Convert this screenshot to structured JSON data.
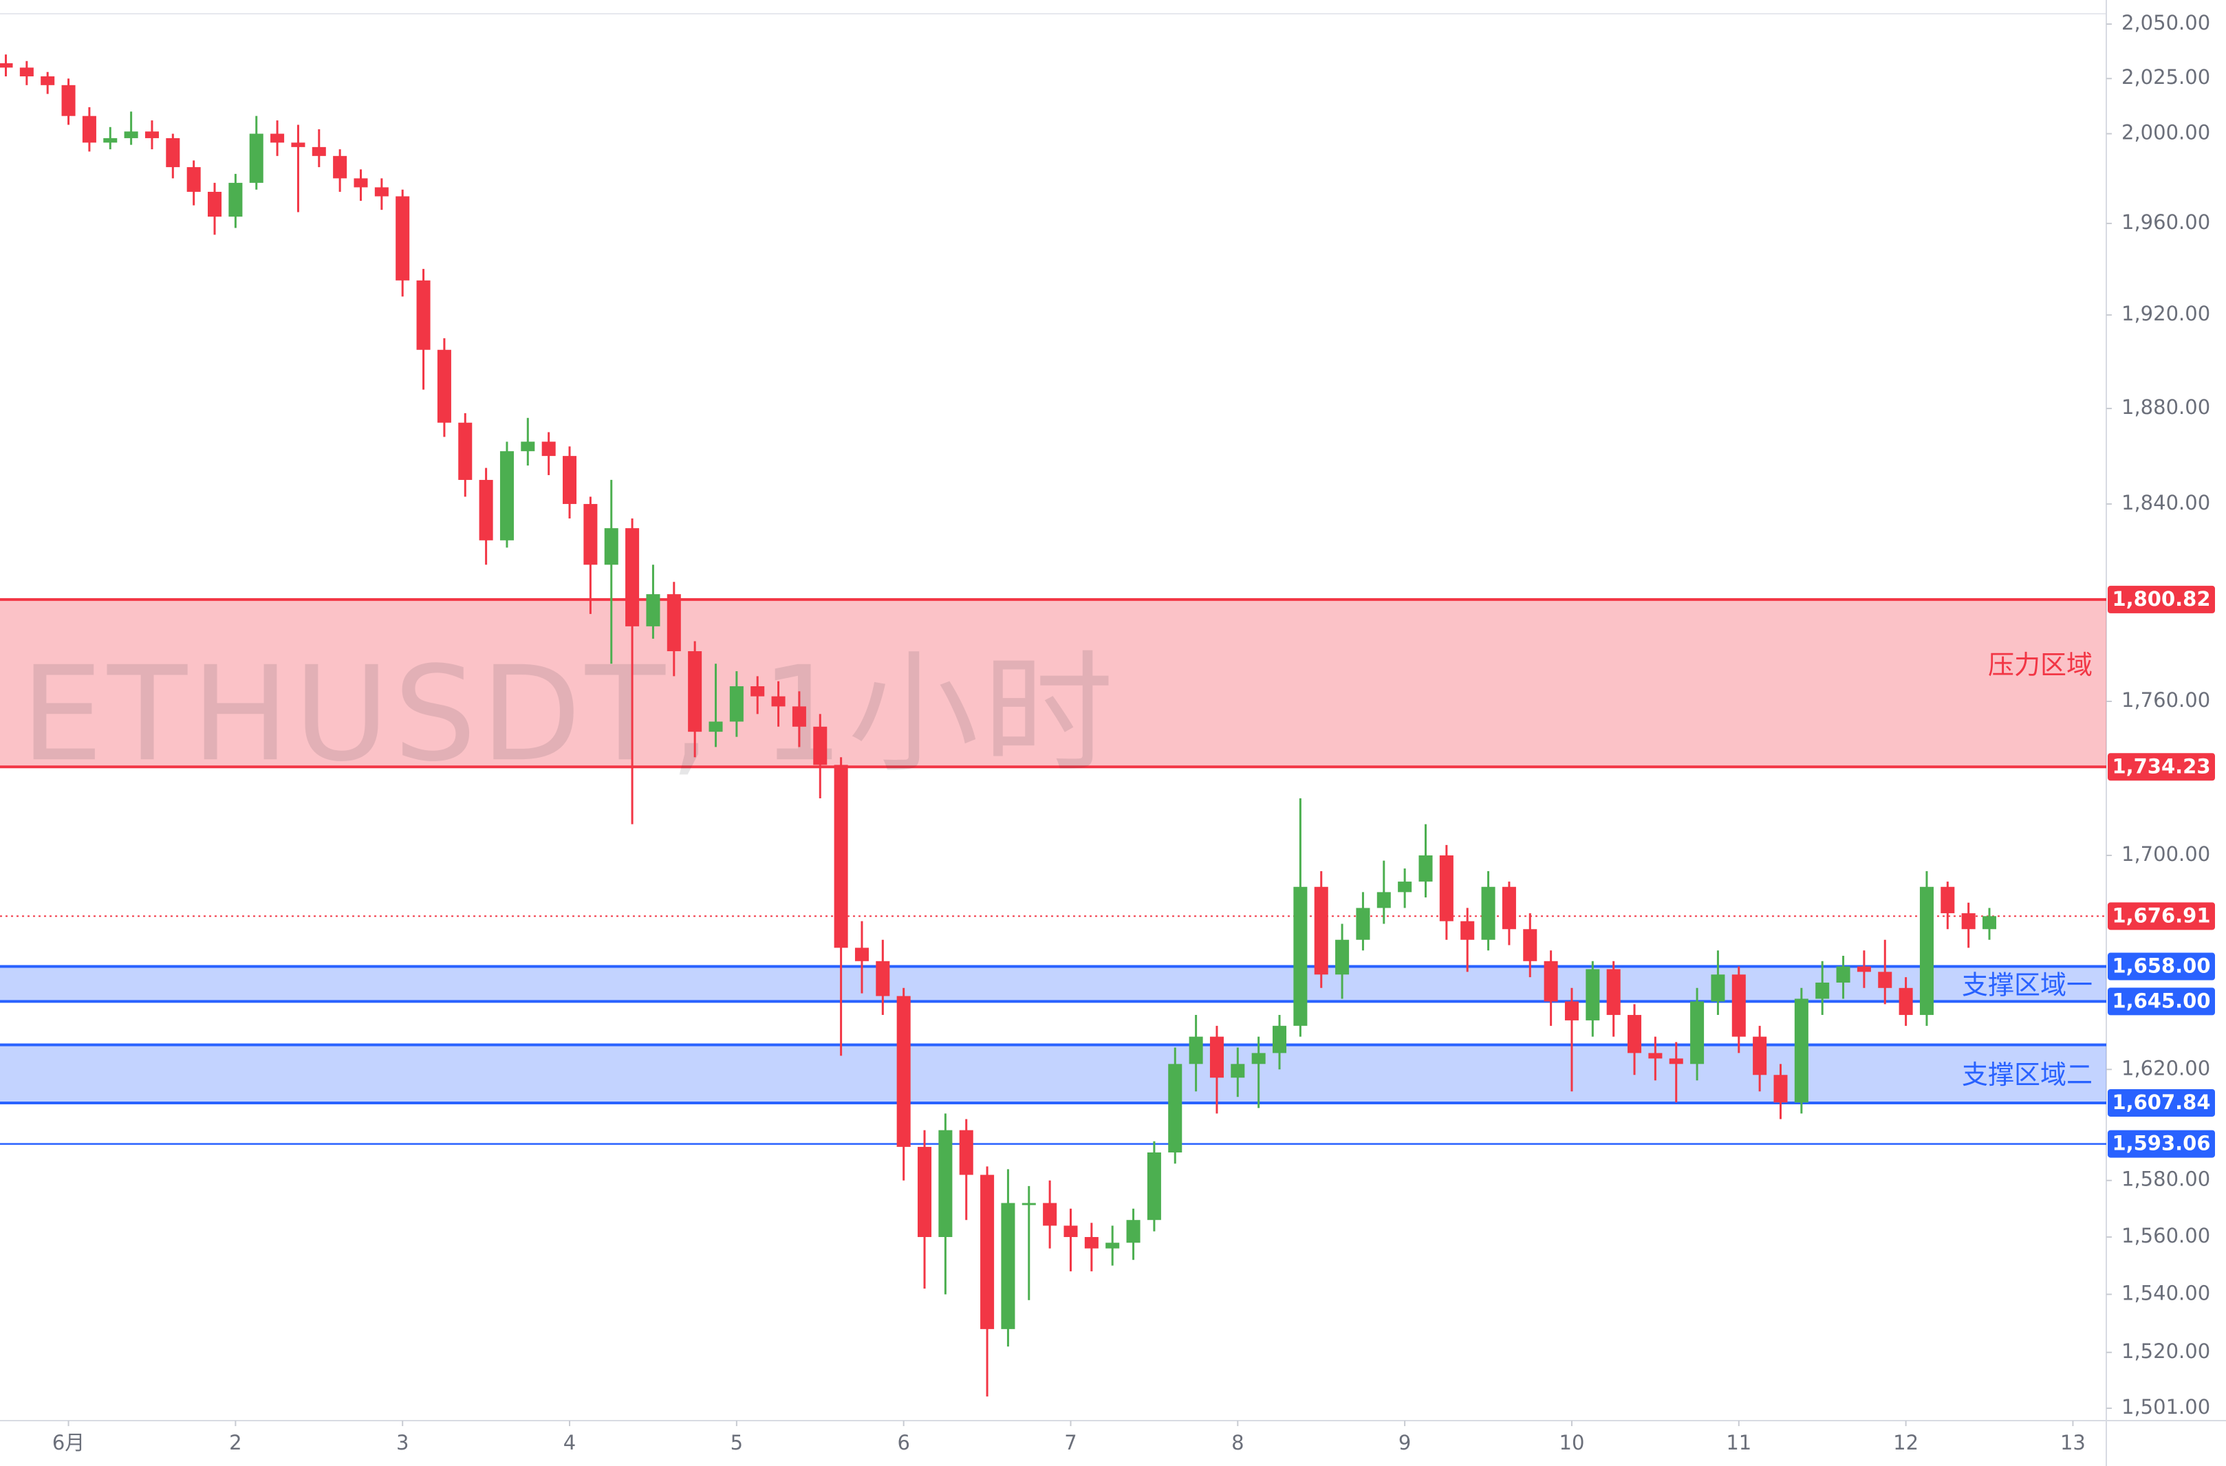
{
  "chart_data": {
    "type": "candlestick",
    "watermark": "ETHUSDT, 1小时",
    "log_scale": true,
    "up_color": "#4caf50",
    "down_color": "#f23645",
    "xlim": [
      0.59,
      13.2
    ],
    "ylim": [
      1501,
      2050
    ],
    "xticks": [
      {
        "value": 1,
        "label": "6月"
      },
      2,
      3,
      4,
      5,
      6,
      7,
      8,
      9,
      10,
      11,
      12,
      13
    ],
    "yticks": [
      {
        "value": 2050,
        "label": "2,050.00"
      },
      {
        "value": 2025,
        "label": "2,025.00"
      },
      {
        "value": 2000,
        "label": "2,000.00"
      },
      {
        "value": 1960,
        "label": "1,960.00"
      },
      {
        "value": 1920,
        "label": "1,920.00"
      },
      {
        "value": 1880,
        "label": "1,880.00"
      },
      {
        "value": 1840,
        "label": "1,840.00"
      },
      {
        "value": 1760,
        "label": "1,760.00"
      },
      {
        "value": 1700,
        "label": "1,700.00"
      },
      {
        "value": 1620,
        "label": "1,620.00"
      },
      {
        "value": 1580,
        "label": "1,580.00"
      },
      {
        "value": 1560,
        "label": "1,560.00"
      },
      {
        "value": 1540,
        "label": "1,540.00"
      },
      {
        "value": 1520,
        "label": "1,520.00"
      },
      {
        "value": 1501,
        "label": "1,501.00"
      }
    ],
    "x": [
      0.625,
      0.75,
      0.875,
      1,
      1.125,
      1.25,
      1.375,
      1.5,
      1.625,
      1.75,
      1.875,
      2,
      2.125,
      2.25,
      2.375,
      2.5,
      2.625,
      2.75,
      2.875,
      3,
      3.125,
      3.25,
      3.375,
      3.5,
      3.625,
      3.75,
      3.875,
      4,
      4.125,
      4.25,
      4.375,
      4.5,
      4.625,
      4.75,
      4.875,
      5,
      5.125,
      5.25,
      5.375,
      5.5,
      5.625,
      5.75,
      5.875,
      6,
      6.125,
      6.25,
      6.375,
      6.5,
      6.625,
      6.75,
      6.875,
      7,
      7.125,
      7.25,
      7.375,
      7.5,
      7.625,
      7.75,
      7.875,
      8,
      8.125,
      8.25,
      8.375,
      8.5,
      8.625,
      8.75,
      8.875,
      9,
      9.125,
      9.25,
      9.375,
      9.5,
      9.625,
      9.75,
      9.875,
      10,
      10.125,
      10.25,
      10.375,
      10.5,
      10.625,
      10.75,
      10.875,
      11,
      11.125,
      11.25,
      11.375,
      11.5,
      11.625,
      11.75,
      11.875,
      12,
      12.125,
      12.25,
      12.375,
      12.5
    ],
    "open": [
      2032,
      2030,
      2026,
      2022,
      2008,
      1996,
      1998,
      2001,
      1998,
      1985,
      1974,
      1963,
      1978,
      2000,
      1996,
      1994,
      1990,
      1980,
      1976,
      1972,
      1935,
      1905,
      1874,
      1850,
      1825,
      1862,
      1866,
      1860,
      1840,
      1815,
      1830,
      1790,
      1803,
      1780,
      1748,
      1752,
      1766,
      1762,
      1758,
      1750,
      1735,
      1665,
      1660,
      1647,
      1592,
      1560,
      1598,
      1582,
      1528,
      1572,
      1572,
      1564,
      1560,
      1556,
      1558,
      1566,
      1590,
      1622,
      1632,
      1617,
      1622,
      1626,
      1636,
      1688,
      1655,
      1668,
      1680,
      1686,
      1690,
      1700,
      1675,
      1668,
      1688,
      1672,
      1660,
      1645,
      1638,
      1657,
      1640,
      1626,
      1624,
      1622,
      1645,
      1655,
      1632,
      1618,
      1608,
      1646,
      1652,
      1658,
      1656,
      1650,
      1640,
      1688,
      1678,
      1672
    ],
    "high": [
      2036,
      2033,
      2028,
      2025,
      2012,
      2003,
      2010,
      2006,
      2000,
      1988,
      1978,
      1982,
      2008,
      2006,
      2004,
      2002,
      1993,
      1984,
      1980,
      1975,
      1940,
      1910,
      1878,
      1855,
      1866,
      1876,
      1870,
      1864,
      1843,
      1850,
      1834,
      1815,
      1808,
      1784,
      1775,
      1772,
      1770,
      1768,
      1764,
      1755,
      1738,
      1675,
      1668,
      1650,
      1598,
      1604,
      1602,
      1585,
      1584,
      1578,
      1580,
      1570,
      1565,
      1564,
      1570,
      1594,
      1628,
      1640,
      1636,
      1628,
      1632,
      1640,
      1722,
      1694,
      1674,
      1686,
      1698,
      1695,
      1712,
      1704,
      1680,
      1694,
      1690,
      1678,
      1664,
      1650,
      1660,
      1660,
      1644,
      1632,
      1630,
      1650,
      1664,
      1658,
      1636,
      1622,
      1650,
      1660,
      1662,
      1664,
      1668,
      1654,
      1694,
      1690,
      1682,
      1680
    ],
    "low": [
      2026,
      2022,
      2018,
      2004,
      1992,
      1993,
      1995,
      1993,
      1980,
      1968,
      1955,
      1958,
      1975,
      1990,
      1965,
      1985,
      1974,
      1970,
      1966,
      1928,
      1888,
      1868,
      1843,
      1815,
      1822,
      1856,
      1852,
      1834,
      1795,
      1775,
      1712,
      1785,
      1770,
      1738,
      1742,
      1746,
      1755,
      1750,
      1742,
      1722,
      1625,
      1648,
      1640,
      1580,
      1542,
      1540,
      1566,
      1505,
      1522,
      1538,
      1556,
      1548,
      1548,
      1550,
      1552,
      1562,
      1586,
      1612,
      1604,
      1610,
      1606,
      1620,
      1632,
      1650,
      1646,
      1664,
      1674,
      1680,
      1684,
      1668,
      1656,
      1664,
      1666,
      1654,
      1636,
      1612,
      1632,
      1632,
      1618,
      1616,
      1608,
      1616,
      1640,
      1626,
      1612,
      1602,
      1604,
      1640,
      1646,
      1650,
      1644,
      1636,
      1636,
      1672,
      1665,
      1668
    ],
    "close": [
      2030,
      2026,
      2022,
      2008,
      1996,
      1998,
      2001,
      1998,
      1985,
      1974,
      1963,
      1978,
      2000,
      1996,
      1994,
      1990,
      1980,
      1976,
      1972,
      1935,
      1905,
      1874,
      1850,
      1825,
      1862,
      1866,
      1860,
      1840,
      1815,
      1830,
      1790,
      1803,
      1780,
      1748,
      1752,
      1766,
      1762,
      1758,
      1750,
      1735,
      1665,
      1660,
      1647,
      1592,
      1560,
      1598,
      1582,
      1528,
      1572,
      1572,
      1564,
      1560,
      1556,
      1558,
      1566,
      1590,
      1622,
      1632,
      1617,
      1622,
      1626,
      1636,
      1688,
      1655,
      1668,
      1680,
      1686,
      1690,
      1700,
      1675,
      1668,
      1688,
      1672,
      1660,
      1645,
      1638,
      1657,
      1640,
      1626,
      1624,
      1622,
      1645,
      1655,
      1632,
      1618,
      1608,
      1646,
      1652,
      1658,
      1656,
      1650,
      1640,
      1688,
      1678,
      1672,
      1676.91
    ],
    "zones": [
      {
        "name": "压力区域",
        "low": {
          "value": 1734.23,
          "label": "1,734.23"
        },
        "high": {
          "value": 1800.82,
          "label": "1,800.82"
        },
        "color": "#f23645",
        "fill": "rgba(242,54,69,0.30)"
      },
      {
        "name": "支撑区域一",
        "low": {
          "value": 1645,
          "label": "1,645.00"
        },
        "high": {
          "value": 1658,
          "label": "1,658.00"
        },
        "color": "#2962ff",
        "fill": "rgba(41,98,255,0.28)"
      },
      {
        "name": "支撑区域二",
        "low": {
          "value": 1607.84,
          "label": "1,607.84"
        },
        "high": 1629,
        "color": "#2962ff",
        "fill": "rgba(41,98,255,0.28)"
      }
    ],
    "lines": [
      {
        "value": 1593.06,
        "label": "1,593.06",
        "color": "#2962ff"
      }
    ],
    "last_price": {
      "value": 1676.91,
      "label": "1,676.91",
      "color": "#f23645"
    }
  }
}
